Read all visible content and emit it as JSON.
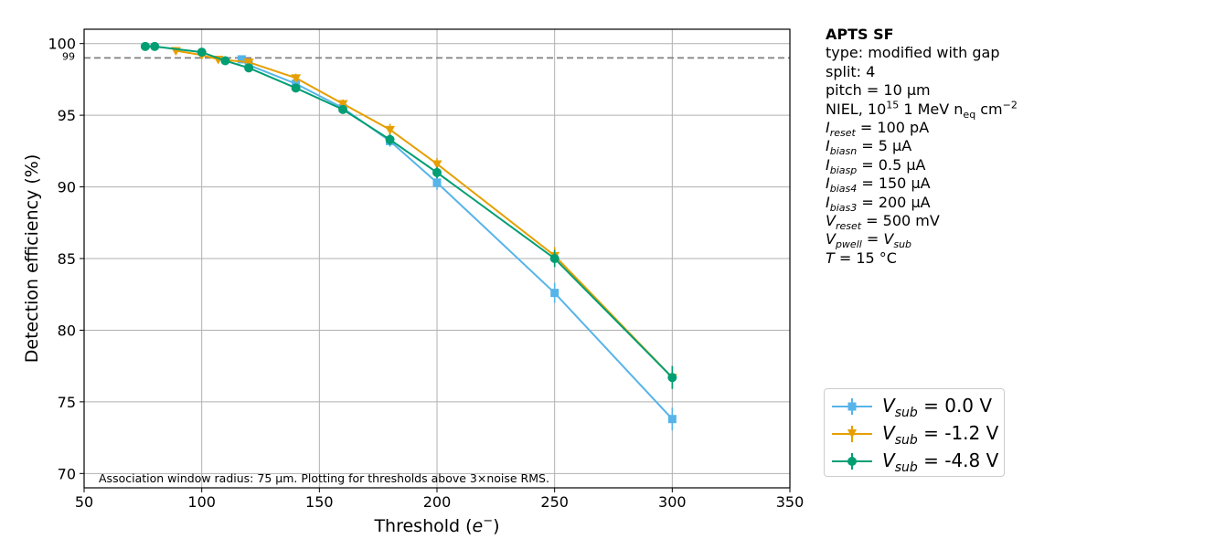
{
  "chart_data": {
    "type": "line",
    "xlabel_main": "Threshold (",
    "xlabel_var": "e",
    "xlabel_sup": "−",
    "xlabel_close": ")",
    "ylabel": "Detection efficiency (%)",
    "xlim": [
      50,
      350
    ],
    "ylim": [
      69,
      101
    ],
    "xticks": [
      50,
      100,
      150,
      200,
      250,
      300,
      350
    ],
    "yticks": [
      70,
      75,
      80,
      85,
      90,
      95,
      100
    ],
    "reference_line": {
      "value": 99,
      "label": "99"
    },
    "annotation": "Association window radius: 75 µm. Plotting for thresholds above 3×noise RMS.",
    "grid": true,
    "series": [
      {
        "name": "V_sub = 0.0 V",
        "color": "#56b4e9",
        "marker": "square",
        "x": [
          117,
          120,
          140,
          160,
          180,
          200,
          250,
          300
        ],
        "y": [
          98.9,
          98.5,
          97.2,
          95.5,
          93.2,
          90.3,
          82.6,
          73.8
        ],
        "err": [
          0.2,
          0.2,
          0.3,
          0.3,
          0.4,
          0.5,
          0.7,
          0.8
        ]
      },
      {
        "name": "V_sub = -1.2 V",
        "color": "#e69f00",
        "marker": "triangle-down",
        "x": [
          89,
          100,
          107,
          120,
          140,
          160,
          180,
          200,
          250,
          300
        ],
        "y": [
          99.5,
          99.2,
          98.9,
          98.7,
          97.6,
          95.8,
          94.0,
          91.6,
          85.2,
          76.7
        ],
        "err": [
          0.1,
          0.2,
          0.2,
          0.2,
          0.3,
          0.3,
          0.4,
          0.4,
          0.6,
          0.8
        ]
      },
      {
        "name": "V_sub = -4.8 V",
        "color": "#009e73",
        "marker": "circle",
        "x": [
          76,
          80,
          100,
          110,
          120,
          140,
          160,
          180,
          200,
          250,
          300
        ],
        "y": [
          99.8,
          99.8,
          99.4,
          98.8,
          98.3,
          96.9,
          95.4,
          93.3,
          91.0,
          85.0,
          76.7
        ],
        "err": [
          0.1,
          0.1,
          0.2,
          0.2,
          0.2,
          0.3,
          0.3,
          0.4,
          0.4,
          0.6,
          0.8
        ]
      }
    ]
  },
  "info_panel": {
    "title": "APTS SF",
    "type_line": "type: modified with gap",
    "split_line": "split:  4",
    "pitch_line": "pitch = 10 µm",
    "niel_prefix": "NIEL, 10",
    "niel_exp": "15",
    "niel_mid": " 1 MeV n",
    "niel_sub": "eq",
    "niel_unit": " cm",
    "niel_unit_exp": "−2",
    "params": [
      {
        "sym": "I",
        "sub": "reset",
        "val": " = 100 pA"
      },
      {
        "sym": "I",
        "sub": "biasn",
        "val": " = 5 µA"
      },
      {
        "sym": "I",
        "sub": "biasp",
        "val": " = 0.5 µA"
      },
      {
        "sym": "I",
        "sub": "bias4",
        "val": " = 150 µA"
      },
      {
        "sym": "I",
        "sub": "bias3",
        "val": " = 200 µA"
      },
      {
        "sym": "V",
        "sub": "reset",
        "val": " = 500 mV"
      }
    ],
    "pwell_sym": "V",
    "pwell_sub": "pwell",
    "pwell_eq": " = ",
    "pwell_rhs_sym": "V",
    "pwell_rhs_sub": "sub",
    "temp_sym": "T",
    "temp_val": " = 15 °C"
  },
  "legend": [
    {
      "sym": "V",
      "sub": "sub",
      "value": " =  0.0 V"
    },
    {
      "sym": "V",
      "sub": "sub",
      "value": " = -1.2 V"
    },
    {
      "sym": "V",
      "sub": "sub",
      "value": " = -4.8 V"
    }
  ]
}
